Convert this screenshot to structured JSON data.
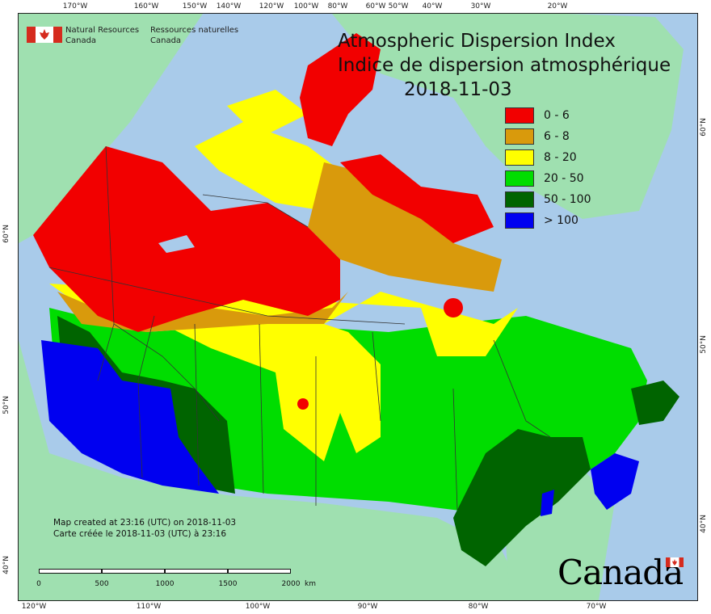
{
  "header": {
    "title_en": "Atmospheric Dispersion Index",
    "title_fr": "Indice de dispersion atmosphérique",
    "date": "2018-11-03"
  },
  "agency": {
    "en_line1": "Natural Resources",
    "en_line2": "Canada",
    "fr_line1": "Ressources naturelles",
    "fr_line2": "Canada"
  },
  "legend": [
    {
      "label": "0 - 6",
      "color": "#f20000"
    },
    {
      "label": "6 - 8",
      "color": "#d99a0c"
    },
    {
      "label": "8 - 20",
      "color": "#ffff00"
    },
    {
      "label": "20 - 50",
      "color": "#00dd00"
    },
    {
      "label": "50 - 100",
      "color": "#006400"
    },
    {
      "label": "> 100",
      "color": "#0000f0"
    }
  ],
  "credit": {
    "line_en": "Map created at 23:16 (UTC) on 2018-11-03",
    "line_fr": "Carte créée le 2018-11-03 (UTC) à 23:16"
  },
  "scale": {
    "labels": [
      "0",
      "500",
      "1000",
      "1500",
      "2000",
      "km"
    ]
  },
  "top_ticks": [
    "170°W",
    "160°W",
    "150°W",
    "140°W",
    "120°W",
    "100°W",
    "80°W",
    "60°W",
    "50°W",
    "40°W",
    "30°W",
    "20°W"
  ],
  "bottom_ticks": [
    "120°W",
    "110°W",
    "100°W",
    "90°W",
    "80°W",
    "70°W"
  ],
  "left_ticks": [
    "60°N",
    "50°N",
    "40°N"
  ],
  "right_ticks": [
    "60°N",
    "50°N",
    "40°N"
  ],
  "wordmark": "Canada",
  "colors": {
    "ocean": "#a9cbea",
    "foreign_land": "#9fe0b0",
    "border": "#333333"
  }
}
